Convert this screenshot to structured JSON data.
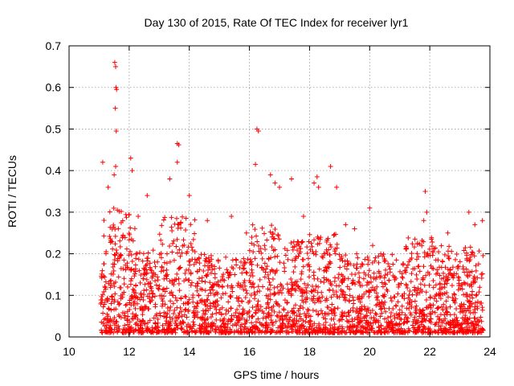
{
  "chart_data": {
    "type": "scatter",
    "title": "Day 130 of 2015, Rate Of TEC Index for receiver lyr1",
    "xlabel": "GPS time / hours",
    "ylabel": "ROTI / TECUs",
    "xlim": [
      10,
      24
    ],
    "ylim": [
      0,
      0.7
    ],
    "x_ticks": [
      10,
      12,
      14,
      16,
      18,
      20,
      22,
      24
    ],
    "y_ticks": [
      0,
      0.1,
      0.2,
      0.3,
      0.4,
      0.5,
      0.6,
      0.7
    ],
    "y_tick_labels": [
      "0",
      "0.1",
      "0.2",
      "0.3",
      "0.4",
      "0.5",
      "0.6",
      "0.7"
    ],
    "grid": true,
    "marker": "+",
    "color": "#ff0000",
    "series": [
      {
        "name": "ROTI",
        "points": [
          [
            11.52,
            0.66
          ],
          [
            11.55,
            0.65
          ],
          [
            11.56,
            0.6
          ],
          [
            11.58,
            0.595
          ],
          [
            11.54,
            0.55
          ],
          [
            11.57,
            0.495
          ],
          [
            16.25,
            0.5
          ],
          [
            16.3,
            0.495
          ],
          [
            13.6,
            0.465
          ],
          [
            13.65,
            0.462
          ],
          [
            13.6,
            0.42
          ],
          [
            12.05,
            0.43
          ],
          [
            12.1,
            0.4
          ],
          [
            11.55,
            0.41
          ],
          [
            11.12,
            0.42
          ],
          [
            11.5,
            0.39
          ],
          [
            13.35,
            0.38
          ],
          [
            16.2,
            0.415
          ],
          [
            16.7,
            0.39
          ],
          [
            18.7,
            0.41
          ],
          [
            18.25,
            0.385
          ],
          [
            18.3,
            0.36
          ],
          [
            17.4,
            0.38
          ],
          [
            21.85,
            0.35
          ],
          [
            23.75,
            0.28
          ],
          [
            20.0,
            0.31
          ],
          [
            15.4,
            0.29
          ],
          [
            14.0,
            0.34
          ],
          [
            12.6,
            0.34
          ],
          [
            11.3,
            0.36
          ],
          [
            16.85,
            0.37
          ],
          [
            17.0,
            0.36
          ],
          [
            18.15,
            0.37
          ],
          [
            18.9,
            0.36
          ],
          [
            19.5,
            0.26
          ],
          [
            21.9,
            0.3
          ],
          [
            21.8,
            0.28
          ],
          [
            23.3,
            0.3
          ],
          [
            22.6,
            0.25
          ],
          [
            20.1,
            0.22
          ],
          [
            23.5,
            0.27
          ],
          [
            12.3,
            0.29
          ],
          [
            14.6,
            0.28
          ],
          [
            15.9,
            0.25
          ],
          [
            17.8,
            0.29
          ],
          [
            19.2,
            0.27
          ]
        ]
      }
    ]
  }
}
